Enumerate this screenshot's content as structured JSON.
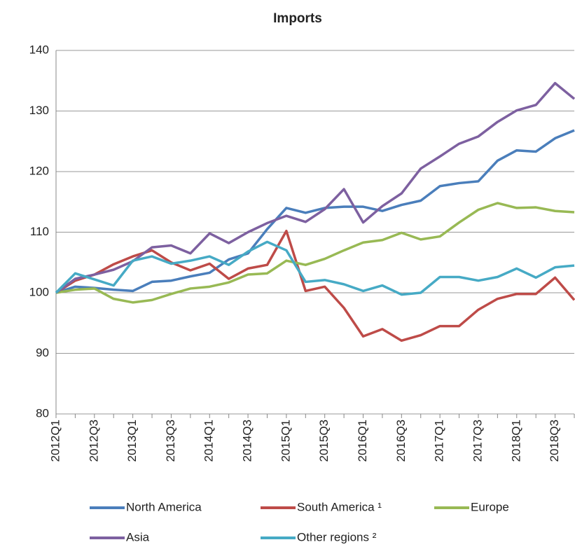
{
  "chart_data": {
    "type": "line",
    "title": "Imports",
    "categories": [
      "2012Q1",
      null,
      "2012Q3",
      null,
      "2013Q1",
      null,
      "2013Q3",
      null,
      "2014Q1",
      null,
      "2014Q3",
      null,
      "2015Q1",
      null,
      "2015Q3",
      null,
      "2016Q1",
      null,
      "2016Q3",
      null,
      "2017Q1",
      null,
      "2017Q3",
      null,
      "2018Q1",
      null,
      "2018Q3",
      null
    ],
    "series": [
      {
        "name": "North America",
        "color": "#4a7ebb",
        "values": [
          100,
          101,
          100.8,
          100.5,
          100.3,
          101.8,
          102.0,
          102.7,
          103.3,
          105.5,
          106.5,
          110.5,
          114.0,
          113.2,
          114.0,
          114.2,
          114.2,
          113.5,
          114.5,
          115.2,
          117.6,
          118.1,
          118.4,
          121.8,
          123.5,
          123.3,
          125.5,
          126.8
        ]
      },
      {
        "name": "South America ¹",
        "color": "#be4b48",
        "values": [
          100,
          102,
          103,
          104.7,
          106,
          107,
          105,
          103.7,
          104.8,
          102.3,
          104.0,
          104.6,
          110.2,
          100.3,
          101,
          97.5,
          92.8,
          94,
          92.1,
          93,
          94.5,
          94.5,
          97.2,
          99,
          99.8,
          99.8,
          102.5,
          98.8
        ]
      },
      {
        "name": "Europe",
        "color": "#98b954",
        "values": [
          100,
          100.5,
          100.7,
          99,
          98.4,
          98.8,
          99.8,
          100.7,
          101,
          101.7,
          103,
          103.2,
          105.3,
          104.6,
          105.6,
          107,
          108.3,
          108.7,
          109.9,
          108.8,
          109.3,
          111.6,
          113.7,
          114.8,
          114,
          114.1,
          113.5,
          113.3
        ]
      },
      {
        "name": "Asia",
        "color": "#7d60a0",
        "values": [
          100,
          102.3,
          103,
          103.8,
          105.2,
          107.5,
          107.8,
          106.5,
          109.8,
          108.2,
          110,
          111.5,
          112.7,
          111.7,
          113.8,
          117.1,
          111.6,
          114.3,
          116.4,
          120.5,
          122.5,
          124.6,
          125.8,
          128.2,
          130.1,
          131,
          134.6,
          132
        ]
      },
      {
        "name": "Other regions ²",
        "color": "#46aac5",
        "values": [
          100,
          103.2,
          102.2,
          101.2,
          105.3,
          106,
          104.8,
          105.3,
          106,
          104.6,
          106.8,
          108.4,
          107,
          101.8,
          102.1,
          101.4,
          100.3,
          101.2,
          99.7,
          100,
          102.6,
          102.6,
          102,
          102.6,
          104,
          102.5,
          104.2,
          104.5
        ]
      }
    ],
    "ylim": [
      80,
      140
    ],
    "yticks": [
      80,
      90,
      100,
      110,
      120,
      130,
      140
    ],
    "grid": true
  }
}
